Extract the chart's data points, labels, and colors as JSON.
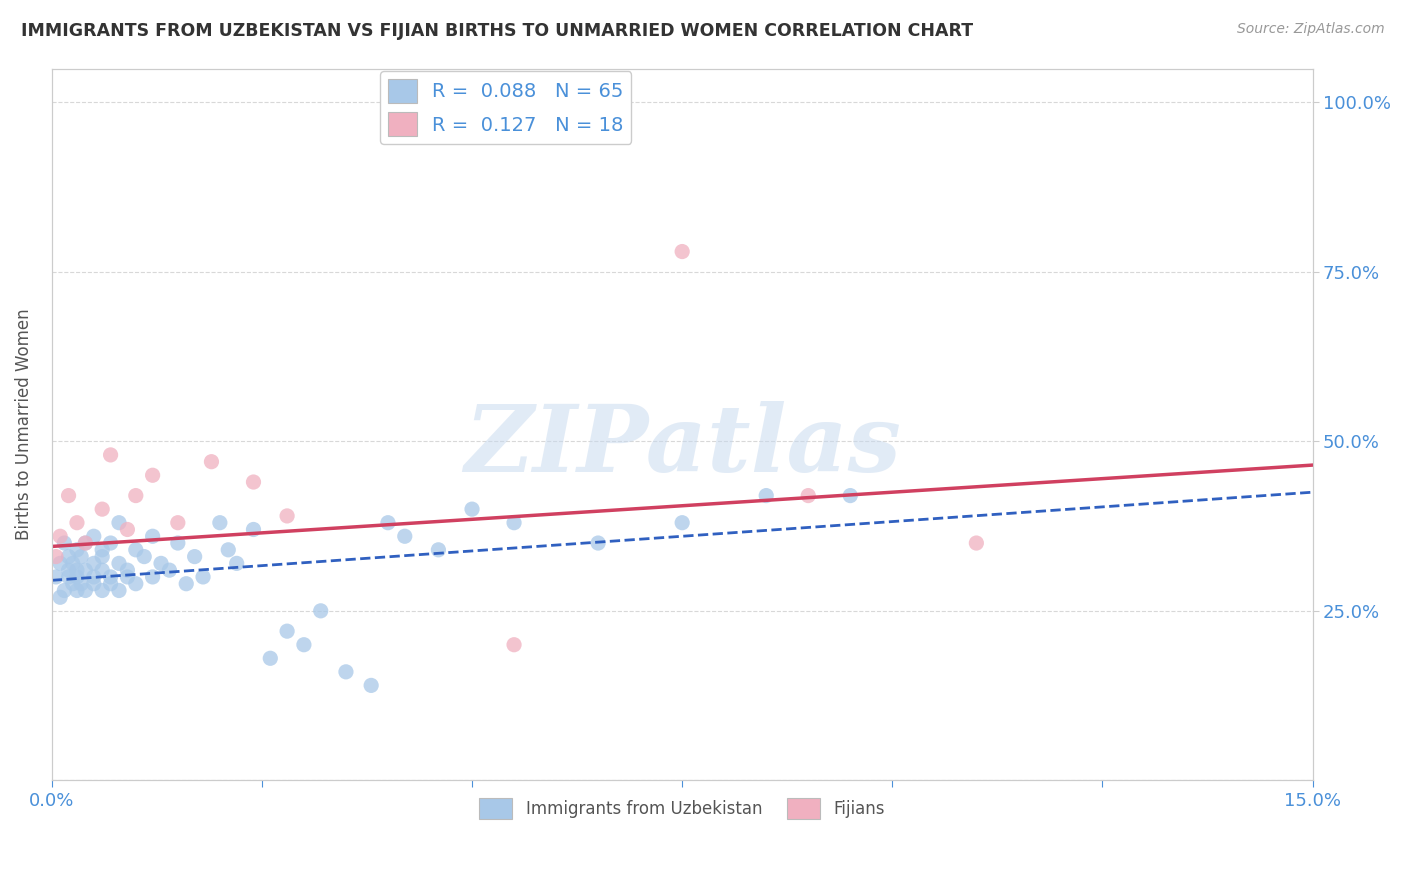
{
  "title": "IMMIGRANTS FROM UZBEKISTAN VS FIJIAN BIRTHS TO UNMARRIED WOMEN CORRELATION CHART",
  "source": "Source: ZipAtlas.com",
  "ylabel": "Births to Unmarried Women",
  "xlabel": "",
  "xlim": [
    0.0,
    0.15
  ],
  "ylim": [
    0.0,
    1.05
  ],
  "legend_label_blue": "Immigrants from Uzbekistan",
  "legend_label_pink": "Fijians",
  "R_blue": "0.088",
  "N_blue": "65",
  "R_pink": "0.127",
  "N_pink": "18",
  "blue_color": "#a8c8e8",
  "pink_color": "#f0b0c0",
  "line_blue_color": "#3060c0",
  "line_pink_color": "#d04060",
  "watermark_text": "ZIPatlas",
  "blue_x": [
    0.0005,
    0.001,
    0.001,
    0.0015,
    0.0015,
    0.002,
    0.002,
    0.002,
    0.0025,
    0.0025,
    0.003,
    0.003,
    0.003,
    0.003,
    0.0035,
    0.0035,
    0.004,
    0.004,
    0.004,
    0.005,
    0.005,
    0.005,
    0.005,
    0.006,
    0.006,
    0.006,
    0.006,
    0.007,
    0.007,
    0.007,
    0.008,
    0.008,
    0.008,
    0.009,
    0.009,
    0.01,
    0.01,
    0.011,
    0.012,
    0.012,
    0.013,
    0.014,
    0.015,
    0.016,
    0.017,
    0.018,
    0.02,
    0.021,
    0.022,
    0.024,
    0.026,
    0.028,
    0.03,
    0.032,
    0.035,
    0.038,
    0.04,
    0.042,
    0.046,
    0.05,
    0.055,
    0.065,
    0.075,
    0.085,
    0.095
  ],
  "blue_y": [
    0.3,
    0.32,
    0.27,
    0.35,
    0.28,
    0.31,
    0.33,
    0.3,
    0.29,
    0.32,
    0.28,
    0.3,
    0.34,
    0.31,
    0.33,
    0.29,
    0.31,
    0.35,
    0.28,
    0.3,
    0.32,
    0.36,
    0.29,
    0.31,
    0.34,
    0.28,
    0.33,
    0.3,
    0.35,
    0.29,
    0.32,
    0.38,
    0.28,
    0.31,
    0.3,
    0.34,
    0.29,
    0.33,
    0.3,
    0.36,
    0.32,
    0.31,
    0.35,
    0.29,
    0.33,
    0.3,
    0.38,
    0.34,
    0.32,
    0.37,
    0.18,
    0.22,
    0.2,
    0.25,
    0.16,
    0.14,
    0.38,
    0.36,
    0.34,
    0.4,
    0.38,
    0.35,
    0.38,
    0.42,
    0.42
  ],
  "pink_x": [
    0.0005,
    0.001,
    0.002,
    0.003,
    0.004,
    0.006,
    0.007,
    0.009,
    0.01,
    0.012,
    0.015,
    0.019,
    0.024,
    0.028,
    0.055,
    0.075,
    0.09,
    0.11
  ],
  "pink_y": [
    0.33,
    0.36,
    0.42,
    0.38,
    0.35,
    0.4,
    0.48,
    0.37,
    0.42,
    0.45,
    0.38,
    0.47,
    0.44,
    0.39,
    0.2,
    0.78,
    0.42,
    0.35
  ],
  "blue_trend_x": [
    0.0,
    0.15
  ],
  "blue_trend_y": [
    0.295,
    0.425
  ],
  "pink_trend_x": [
    0.0,
    0.15
  ],
  "pink_trend_y": [
    0.345,
    0.465
  ],
  "background_color": "#ffffff",
  "grid_color": "#d8d8d8"
}
